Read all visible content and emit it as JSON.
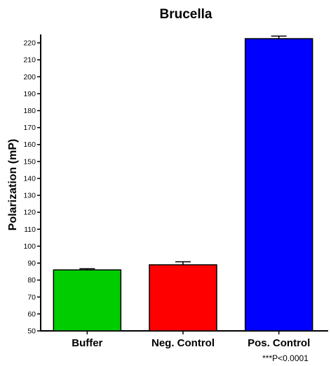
{
  "chart_data": {
    "type": "bar",
    "title": "Brucella",
    "xlabel": "",
    "ylabel": "Polarization (mP)",
    "categories": [
      "Buffer",
      "Neg. Control",
      "Pos. Control"
    ],
    "values": [
      86,
      89,
      222.5
    ],
    "errors": [
      0.7,
      1.8,
      1.5
    ],
    "colors": [
      "#00cc00",
      "#ff0000",
      "#0000ff"
    ],
    "ylim": [
      50,
      225
    ],
    "yticks": [
      50,
      60,
      70,
      80,
      90,
      100,
      110,
      120,
      130,
      140,
      150,
      160,
      170,
      180,
      190,
      200,
      210,
      220
    ],
    "annotation": "***P<0.0001",
    "grid": false,
    "legend": "none"
  }
}
